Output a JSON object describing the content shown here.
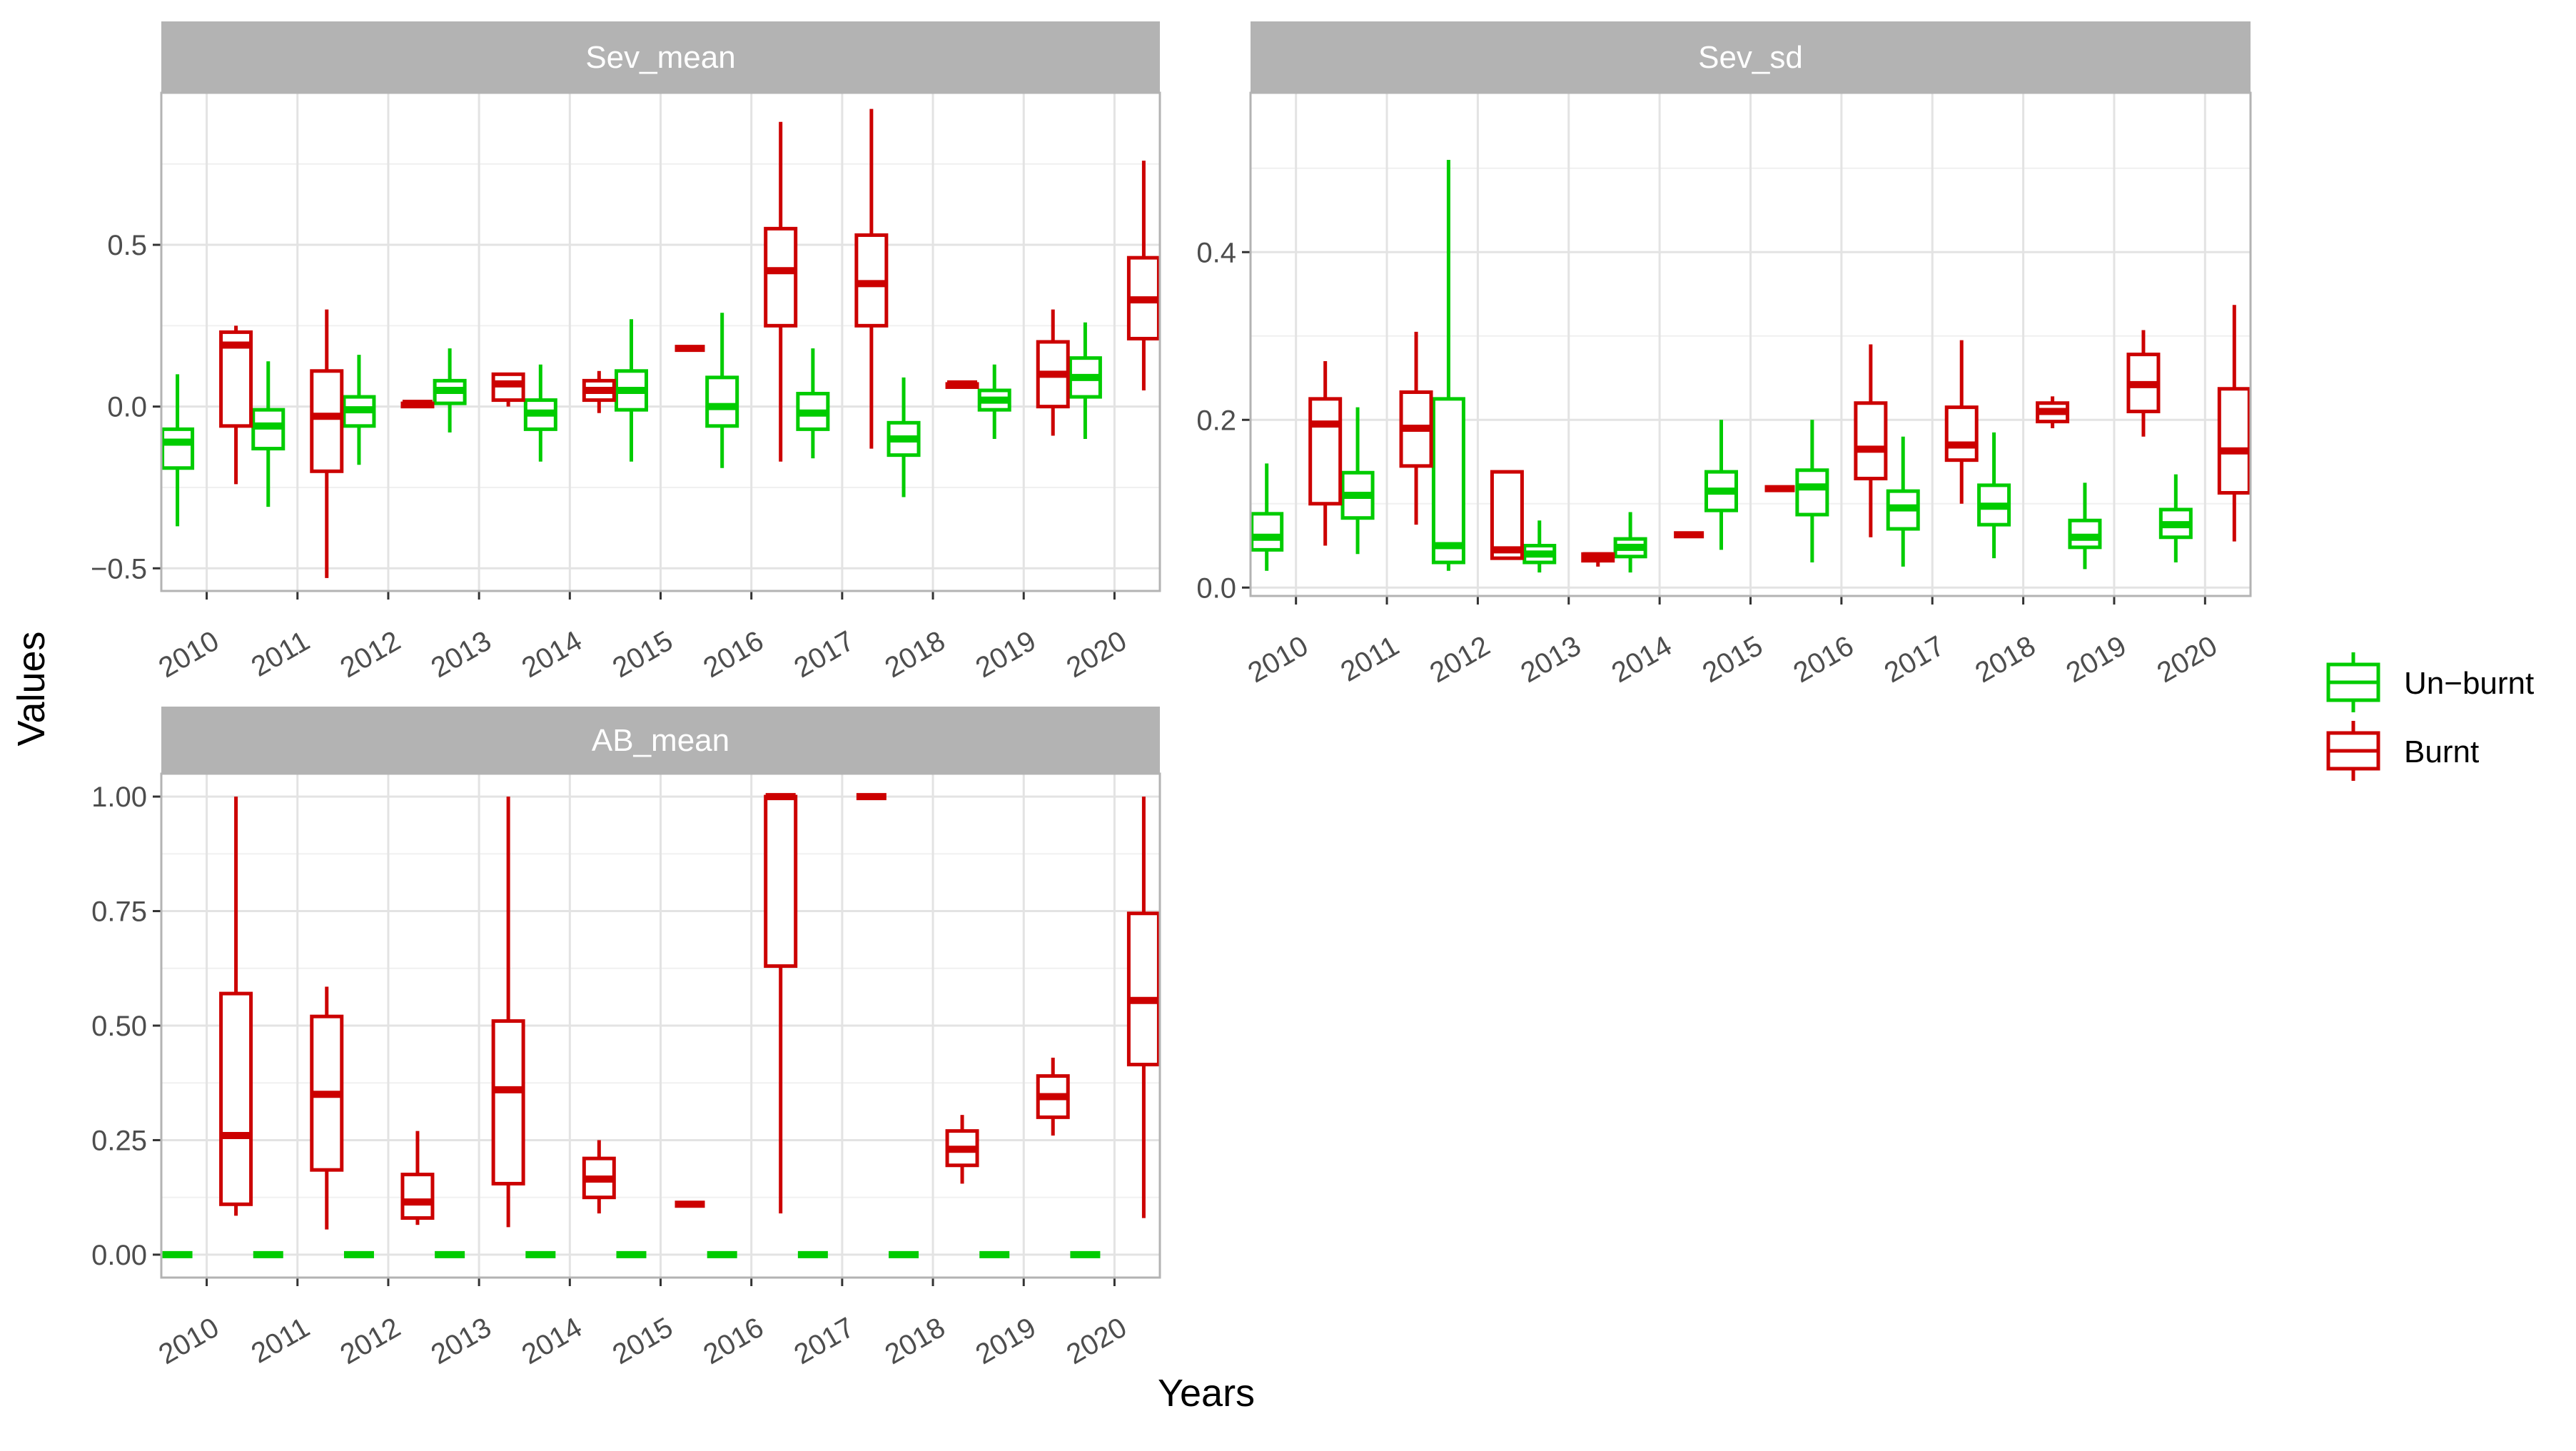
{
  "figure": {
    "xlabel": "Years",
    "ylabel": "Values"
  },
  "legend": {
    "items": [
      {
        "label": "Un−burnt",
        "color": "#00cc00"
      },
      {
        "label": "Burnt",
        "color": "#cc0000"
      }
    ]
  },
  "chart_data": [
    {
      "type": "boxplot",
      "title": "Sev_mean",
      "categories": [
        "2010",
        "2011",
        "2012",
        "2013",
        "2014",
        "2015",
        "2016",
        "2017",
        "2018",
        "2019",
        "2020"
      ],
      "ylim": [
        -0.57,
        0.97
      ],
      "yticks": [
        -0.5,
        0.0,
        0.5
      ],
      "ytick_labels": [
        "−0.5",
        "0.0",
        "0.5"
      ],
      "grid": true,
      "series": [
        {
          "name": "Un−burnt",
          "boxes": [
            {
              "min": -0.37,
              "q1": -0.19,
              "median": -0.11,
              "q3": -0.07,
              "max": 0.1
            },
            {
              "min": -0.31,
              "q1": -0.13,
              "median": -0.06,
              "q3": -0.01,
              "max": 0.14
            },
            {
              "min": -0.18,
              "q1": -0.06,
              "median": -0.01,
              "q3": 0.03,
              "max": 0.16
            },
            {
              "min": -0.08,
              "q1": 0.01,
              "median": 0.05,
              "q3": 0.08,
              "max": 0.18
            },
            {
              "min": -0.17,
              "q1": -0.07,
              "median": -0.02,
              "q3": 0.02,
              "max": 0.13
            },
            {
              "min": -0.17,
              "q1": -0.01,
              "median": 0.05,
              "q3": 0.11,
              "max": 0.27
            },
            {
              "min": -0.19,
              "q1": -0.06,
              "median": 0.0,
              "q3": 0.09,
              "max": 0.29
            },
            {
              "min": -0.16,
              "q1": -0.07,
              "median": -0.02,
              "q3": 0.04,
              "max": 0.18
            },
            {
              "min": -0.28,
              "q1": -0.15,
              "median": -0.1,
              "q3": -0.05,
              "max": 0.09
            },
            {
              "min": -0.1,
              "q1": -0.01,
              "median": 0.02,
              "q3": 0.05,
              "max": 0.13
            },
            {
              "min": -0.1,
              "q1": 0.03,
              "median": 0.09,
              "q3": 0.15,
              "max": 0.26
            }
          ]
        },
        {
          "name": "Burnt",
          "boxes": [
            {
              "min": -0.24,
              "q1": -0.06,
              "median": 0.19,
              "q3": 0.23,
              "max": 0.25
            },
            {
              "min": -0.53,
              "q1": -0.2,
              "median": -0.03,
              "q3": 0.11,
              "max": 0.3
            },
            {
              "min": 0.0,
              "q1": 0.0,
              "median": 0.01,
              "q3": 0.01,
              "max": 0.01
            },
            {
              "min": 0.0,
              "q1": 0.02,
              "median": 0.07,
              "q3": 0.1,
              "max": 0.1
            },
            {
              "min": -0.02,
              "q1": 0.02,
              "median": 0.05,
              "q3": 0.08,
              "max": 0.11
            },
            {
              "min": 0.18,
              "q1": 0.18,
              "median": 0.18,
              "q3": 0.18,
              "max": 0.18
            },
            {
              "min": -0.17,
              "q1": 0.25,
              "median": 0.42,
              "q3": 0.55,
              "max": 0.88
            },
            {
              "min": -0.13,
              "q1": 0.25,
              "median": 0.38,
              "q3": 0.53,
              "max": 0.92
            },
            {
              "min": 0.06,
              "q1": 0.06,
              "median": 0.07,
              "q3": 0.07,
              "max": 0.08
            },
            {
              "min": -0.09,
              "q1": 0.0,
              "median": 0.1,
              "q3": 0.2,
              "max": 0.3
            },
            {
              "min": 0.05,
              "q1": 0.21,
              "median": 0.33,
              "q3": 0.46,
              "max": 0.76
            }
          ]
        }
      ]
    },
    {
      "type": "boxplot",
      "title": "Sev_sd",
      "categories": [
        "2010",
        "2011",
        "2012",
        "2013",
        "2014",
        "2015",
        "2016",
        "2017",
        "2018",
        "2019",
        "2020"
      ],
      "ylim": [
        -0.01,
        0.59
      ],
      "yticks": [
        0.0,
        0.2,
        0.4
      ],
      "ytick_labels": [
        "0.0",
        "0.2",
        "0.4"
      ],
      "grid": true,
      "series": [
        {
          "name": "Un−burnt",
          "boxes": [
            {
              "min": 0.02,
              "q1": 0.045,
              "median": 0.06,
              "q3": 0.088,
              "max": 0.148
            },
            {
              "min": 0.04,
              "q1": 0.083,
              "median": 0.11,
              "q3": 0.137,
              "max": 0.215
            },
            {
              "min": 0.02,
              "q1": 0.03,
              "median": 0.05,
              "q3": 0.225,
              "max": 0.51
            },
            {
              "min": 0.018,
              "q1": 0.03,
              "median": 0.04,
              "q3": 0.05,
              "max": 0.08
            },
            {
              "min": 0.018,
              "q1": 0.037,
              "median": 0.048,
              "q3": 0.058,
              "max": 0.09
            },
            {
              "min": 0.045,
              "q1": 0.092,
              "median": 0.115,
              "q3": 0.138,
              "max": 0.2
            },
            {
              "min": 0.03,
              "q1": 0.087,
              "median": 0.12,
              "q3": 0.14,
              "max": 0.2
            },
            {
              "min": 0.025,
              "q1": 0.07,
              "median": 0.095,
              "q3": 0.115,
              "max": 0.18
            },
            {
              "min": 0.035,
              "q1": 0.075,
              "median": 0.097,
              "q3": 0.122,
              "max": 0.185
            },
            {
              "min": 0.022,
              "q1": 0.048,
              "median": 0.06,
              "q3": 0.08,
              "max": 0.125
            },
            {
              "min": 0.03,
              "q1": 0.06,
              "median": 0.075,
              "q3": 0.093,
              "max": 0.135
            }
          ]
        },
        {
          "name": "Burnt",
          "boxes": [
            {
              "min": 0.05,
              "q1": 0.1,
              "median": 0.195,
              "q3": 0.225,
              "max": 0.27
            },
            {
              "min": 0.075,
              "q1": 0.145,
              "median": 0.19,
              "q3": 0.233,
              "max": 0.305
            },
            {
              "min": 0.035,
              "q1": 0.035,
              "median": 0.045,
              "q3": 0.138,
              "max": 0.138
            },
            {
              "min": 0.025,
              "q1": 0.032,
              "median": 0.038,
              "q3": 0.04,
              "max": 0.04
            },
            {
              "min": 0.063,
              "q1": 0.063,
              "median": 0.063,
              "q3": 0.063,
              "max": 0.063
            },
            {
              "min": 0.118,
              "q1": 0.118,
              "median": 0.118,
              "q3": 0.118,
              "max": 0.118
            },
            {
              "min": 0.06,
              "q1": 0.13,
              "median": 0.165,
              "q3": 0.22,
              "max": 0.29
            },
            {
              "min": 0.1,
              "q1": 0.152,
              "median": 0.17,
              "q3": 0.215,
              "max": 0.295
            },
            {
              "min": 0.19,
              "q1": 0.198,
              "median": 0.21,
              "q3": 0.22,
              "max": 0.228
            },
            {
              "min": 0.18,
              "q1": 0.21,
              "median": 0.242,
              "q3": 0.278,
              "max": 0.307
            },
            {
              "min": 0.055,
              "q1": 0.113,
              "median": 0.163,
              "q3": 0.237,
              "max": 0.337
            }
          ]
        }
      ]
    },
    {
      "type": "boxplot",
      "title": "AB_mean",
      "categories": [
        "2010",
        "2011",
        "2012",
        "2013",
        "2014",
        "2015",
        "2016",
        "2017",
        "2018",
        "2019",
        "2020"
      ],
      "ylim": [
        -0.05,
        1.05
      ],
      "yticks": [
        0.0,
        0.25,
        0.5,
        0.75,
        1.0
      ],
      "ytick_labels": [
        "0.00",
        "0.25",
        "0.50",
        "0.75",
        "1.00"
      ],
      "grid": true,
      "series": [
        {
          "name": "Un−burnt",
          "boxes": [
            {
              "min": 0,
              "q1": 0,
              "median": 0,
              "q3": 0,
              "max": 0
            },
            {
              "min": 0,
              "q1": 0,
              "median": 0,
              "q3": 0,
              "max": 0
            },
            {
              "min": 0,
              "q1": 0,
              "median": 0,
              "q3": 0,
              "max": 0
            },
            {
              "min": 0,
              "q1": 0,
              "median": 0,
              "q3": 0,
              "max": 0
            },
            {
              "min": 0,
              "q1": 0,
              "median": 0,
              "q3": 0,
              "max": 0
            },
            {
              "min": 0,
              "q1": 0,
              "median": 0,
              "q3": 0,
              "max": 0
            },
            {
              "min": 0,
              "q1": 0,
              "median": 0,
              "q3": 0,
              "max": 0
            },
            {
              "min": 0,
              "q1": 0,
              "median": 0,
              "q3": 0,
              "max": 0
            },
            {
              "min": 0,
              "q1": 0,
              "median": 0,
              "q3": 0,
              "max": 0
            },
            {
              "min": 0,
              "q1": 0,
              "median": 0,
              "q3": 0,
              "max": 0
            },
            {
              "min": 0,
              "q1": 0,
              "median": 0,
              "q3": 0,
              "max": 0
            }
          ]
        },
        {
          "name": "Burnt",
          "boxes": [
            {
              "min": 0.085,
              "q1": 0.11,
              "median": 0.26,
              "q3": 0.57,
              "max": 1.0
            },
            {
              "min": 0.055,
              "q1": 0.185,
              "median": 0.35,
              "q3": 0.52,
              "max": 0.585
            },
            {
              "min": 0.065,
              "q1": 0.08,
              "median": 0.115,
              "q3": 0.175,
              "max": 0.27
            },
            {
              "min": 0.06,
              "q1": 0.155,
              "median": 0.36,
              "q3": 0.51,
              "max": 1.0
            },
            {
              "min": 0.09,
              "q1": 0.125,
              "median": 0.165,
              "q3": 0.21,
              "max": 0.25
            },
            {
              "min": 0.11,
              "q1": 0.11,
              "median": 0.11,
              "q3": 0.11,
              "max": 0.11
            },
            {
              "min": 0.09,
              "q1": 0.63,
              "median": 1.0,
              "q3": 1.0,
              "max": 1.0
            },
            {
              "min": 1.0,
              "q1": 1.0,
              "median": 1.0,
              "q3": 1.0,
              "max": 1.0
            },
            {
              "min": 0.155,
              "q1": 0.195,
              "median": 0.23,
              "q3": 0.27,
              "max": 0.305
            },
            {
              "min": 0.26,
              "q1": 0.3,
              "median": 0.345,
              "q3": 0.39,
              "max": 0.43
            },
            {
              "min": 0.08,
              "q1": 0.415,
              "median": 0.555,
              "q3": 0.745,
              "max": 1.0
            }
          ]
        }
      ]
    }
  ]
}
